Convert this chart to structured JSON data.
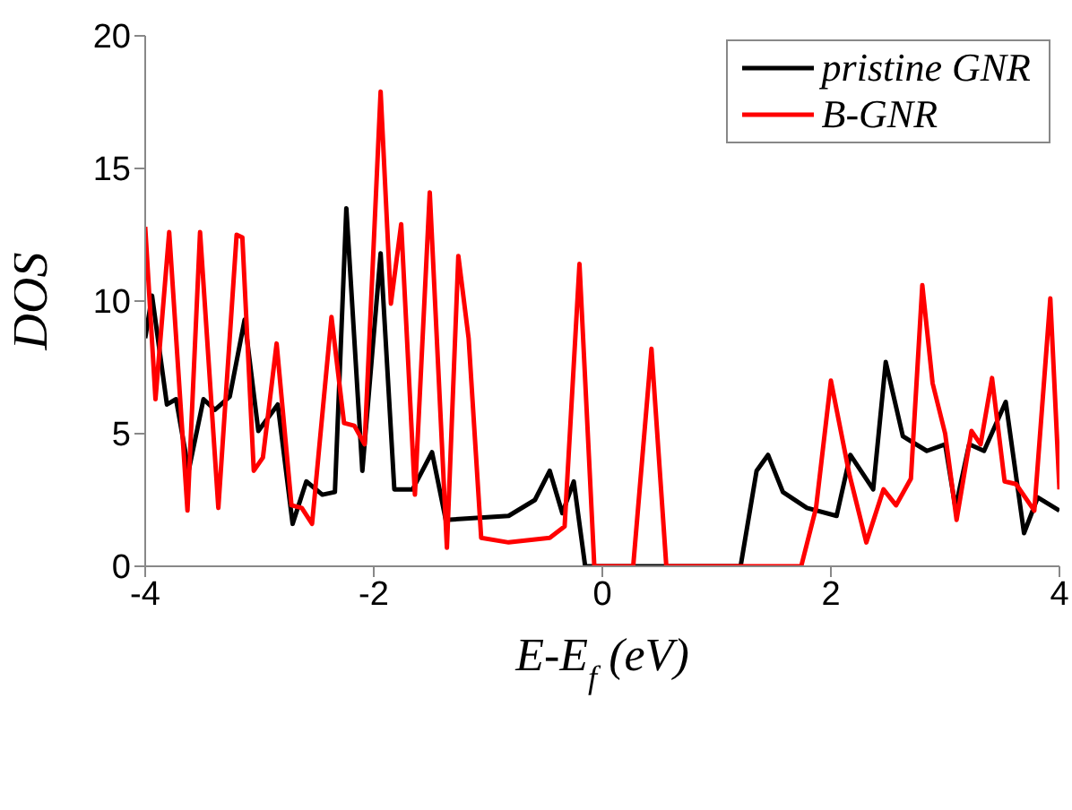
{
  "chart_data": {
    "type": "line",
    "xlabel": "E-E$_{f}$ (eV)",
    "ylabel": "DOS",
    "xlim": [
      -4,
      4
    ],
    "xticks": [
      -4,
      -2,
      0,
      2,
      4
    ],
    "ylim": [
      0,
      20
    ],
    "yticks": [
      0,
      5,
      10,
      15,
      20
    ],
    "grid": false,
    "legend": "top right",
    "marker": "none",
    "line_style": "solid",
    "series": [
      {
        "name": "pristine GNR",
        "color": "#000000",
        "x": [
          -4,
          -3.94,
          -3.81,
          -3.73,
          -3.62,
          -3.49,
          -3.39,
          -3.26,
          -3.13,
          -3.01,
          -2.84,
          -2.71,
          -2.59,
          -2.45,
          -2.34,
          -2.24,
          -2.1,
          -1.94,
          -1.82,
          -1.66,
          -1.49,
          -1.37,
          -0.82,
          -0.59,
          -0.46,
          -0.35,
          -0.25,
          -0.15,
          1.21,
          1.35,
          1.45,
          1.58,
          1.79,
          2.05,
          2.17,
          2.37,
          2.48,
          2.63,
          2.84,
          3,
          3.09,
          3.21,
          3.34,
          3.53,
          3.69,
          3.81,
          4
        ],
        "values": [
          8.6,
          10.2,
          6.1,
          6.3,
          3.6,
          6.3,
          5.9,
          6.4,
          9.3,
          5.1,
          6.1,
          1.6,
          3.2,
          2.7,
          2.8,
          13.5,
          3.6,
          11.8,
          2.9,
          2.9,
          4.3,
          1.75,
          1.9,
          2.5,
          3.6,
          2,
          3.2,
          0,
          0,
          3.6,
          4.2,
          2.8,
          2.2,
          1.9,
          4.2,
          2.9,
          7.7,
          4.9,
          4.35,
          4.6,
          2.2,
          4.6,
          4.35,
          6.2,
          1.25,
          2.6,
          2.1
        ]
      },
      {
        "name": "B-GNR",
        "color": "#ff0000",
        "x": [
          -4,
          -3.91,
          -3.79,
          -3.63,
          -3.52,
          -3.36,
          -3.2,
          -3.15,
          -3.05,
          -2.97,
          -2.85,
          -2.72,
          -2.63,
          -2.54,
          -2.37,
          -2.26,
          -2.17,
          -2.08,
          -1.94,
          -1.85,
          -1.76,
          -1.64,
          -1.51,
          -1.36,
          -1.26,
          -1.17,
          -1.06,
          -0.82,
          -0.46,
          -0.33,
          -0.2,
          -0.07,
          0.27,
          0.43,
          0.56,
          1.74,
          1.87,
          2,
          2.16,
          2.31,
          2.46,
          2.57,
          2.7,
          2.8,
          2.89,
          3,
          3.1,
          3.23,
          3.31,
          3.41,
          3.52,
          3.62,
          3.78,
          3.92,
          4
        ],
        "values": [
          12.8,
          6.3,
          12.6,
          2.1,
          12.6,
          2.2,
          12.5,
          12.4,
          3.6,
          4.1,
          8.4,
          2.3,
          2.2,
          1.6,
          9.4,
          5.4,
          5.3,
          4.6,
          17.9,
          9.9,
          12.9,
          2.7,
          14.1,
          0.7,
          11.7,
          8.6,
          1.07,
          0.9,
          1.07,
          1.5,
          11.4,
          0,
          0,
          8.2,
          0,
          0,
          2.2,
          7,
          3.5,
          0.9,
          2.9,
          2.3,
          3.3,
          10.6,
          6.9,
          5,
          1.75,
          5.1,
          4.6,
          7.1,
          3.2,
          3.1,
          2.1,
          10.1,
          2.9
        ]
      }
    ]
  }
}
